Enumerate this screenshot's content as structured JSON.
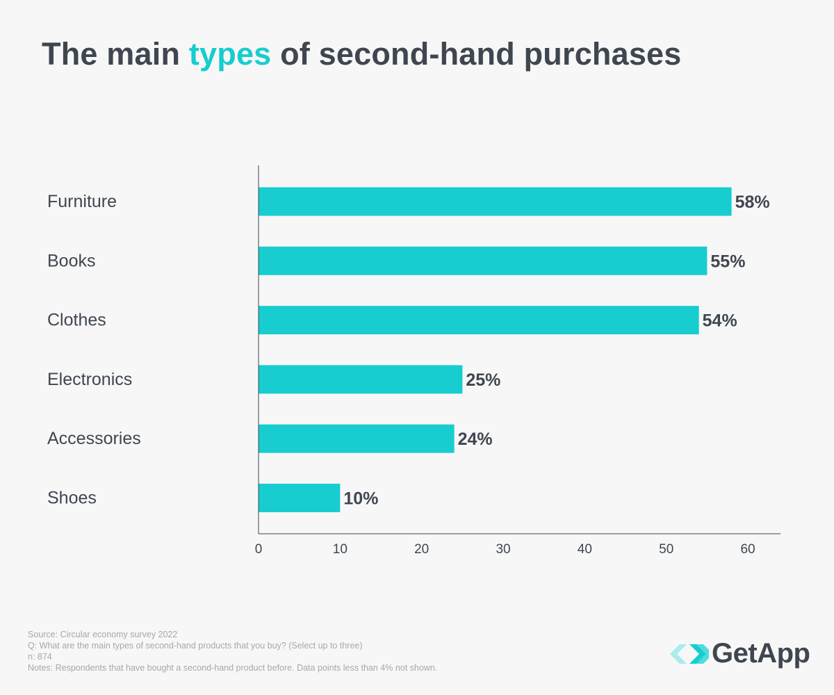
{
  "title": {
    "part1": "The main ",
    "accent": "types",
    "part2": " of  second-hand purchases"
  },
  "colors": {
    "bar": "#17cdd0",
    "text": "#3f4650",
    "accent": "#17cdd0",
    "footnote": "#a3a8ae",
    "background": "#f7f7f7"
  },
  "chart_data": {
    "type": "bar",
    "orientation": "horizontal",
    "categories": [
      "Furniture",
      "Books",
      "Clothes",
      "Electronics",
      "Accessories",
      "Shoes"
    ],
    "values": [
      58,
      55,
      54,
      25,
      24,
      10
    ],
    "value_labels": [
      "58%",
      "55%",
      "54%",
      "25%",
      "24%",
      "10%"
    ],
    "xlim": [
      0,
      64
    ],
    "xticks": [
      0,
      10,
      20,
      30,
      40,
      50,
      60
    ],
    "grid": false,
    "legend": "none"
  },
  "footnotes": {
    "source": "Source: Circular economy survey 2022",
    "question": "Q: What are the main types of second-hand products that you buy? (Select up to three)",
    "n": "n: 874",
    "notes": "Notes: Respondents that have bought a second-hand product before. Data points less than 4% not shown."
  },
  "logo": {
    "text": "GetApp",
    "icon": "getapp-chevrons-icon"
  }
}
